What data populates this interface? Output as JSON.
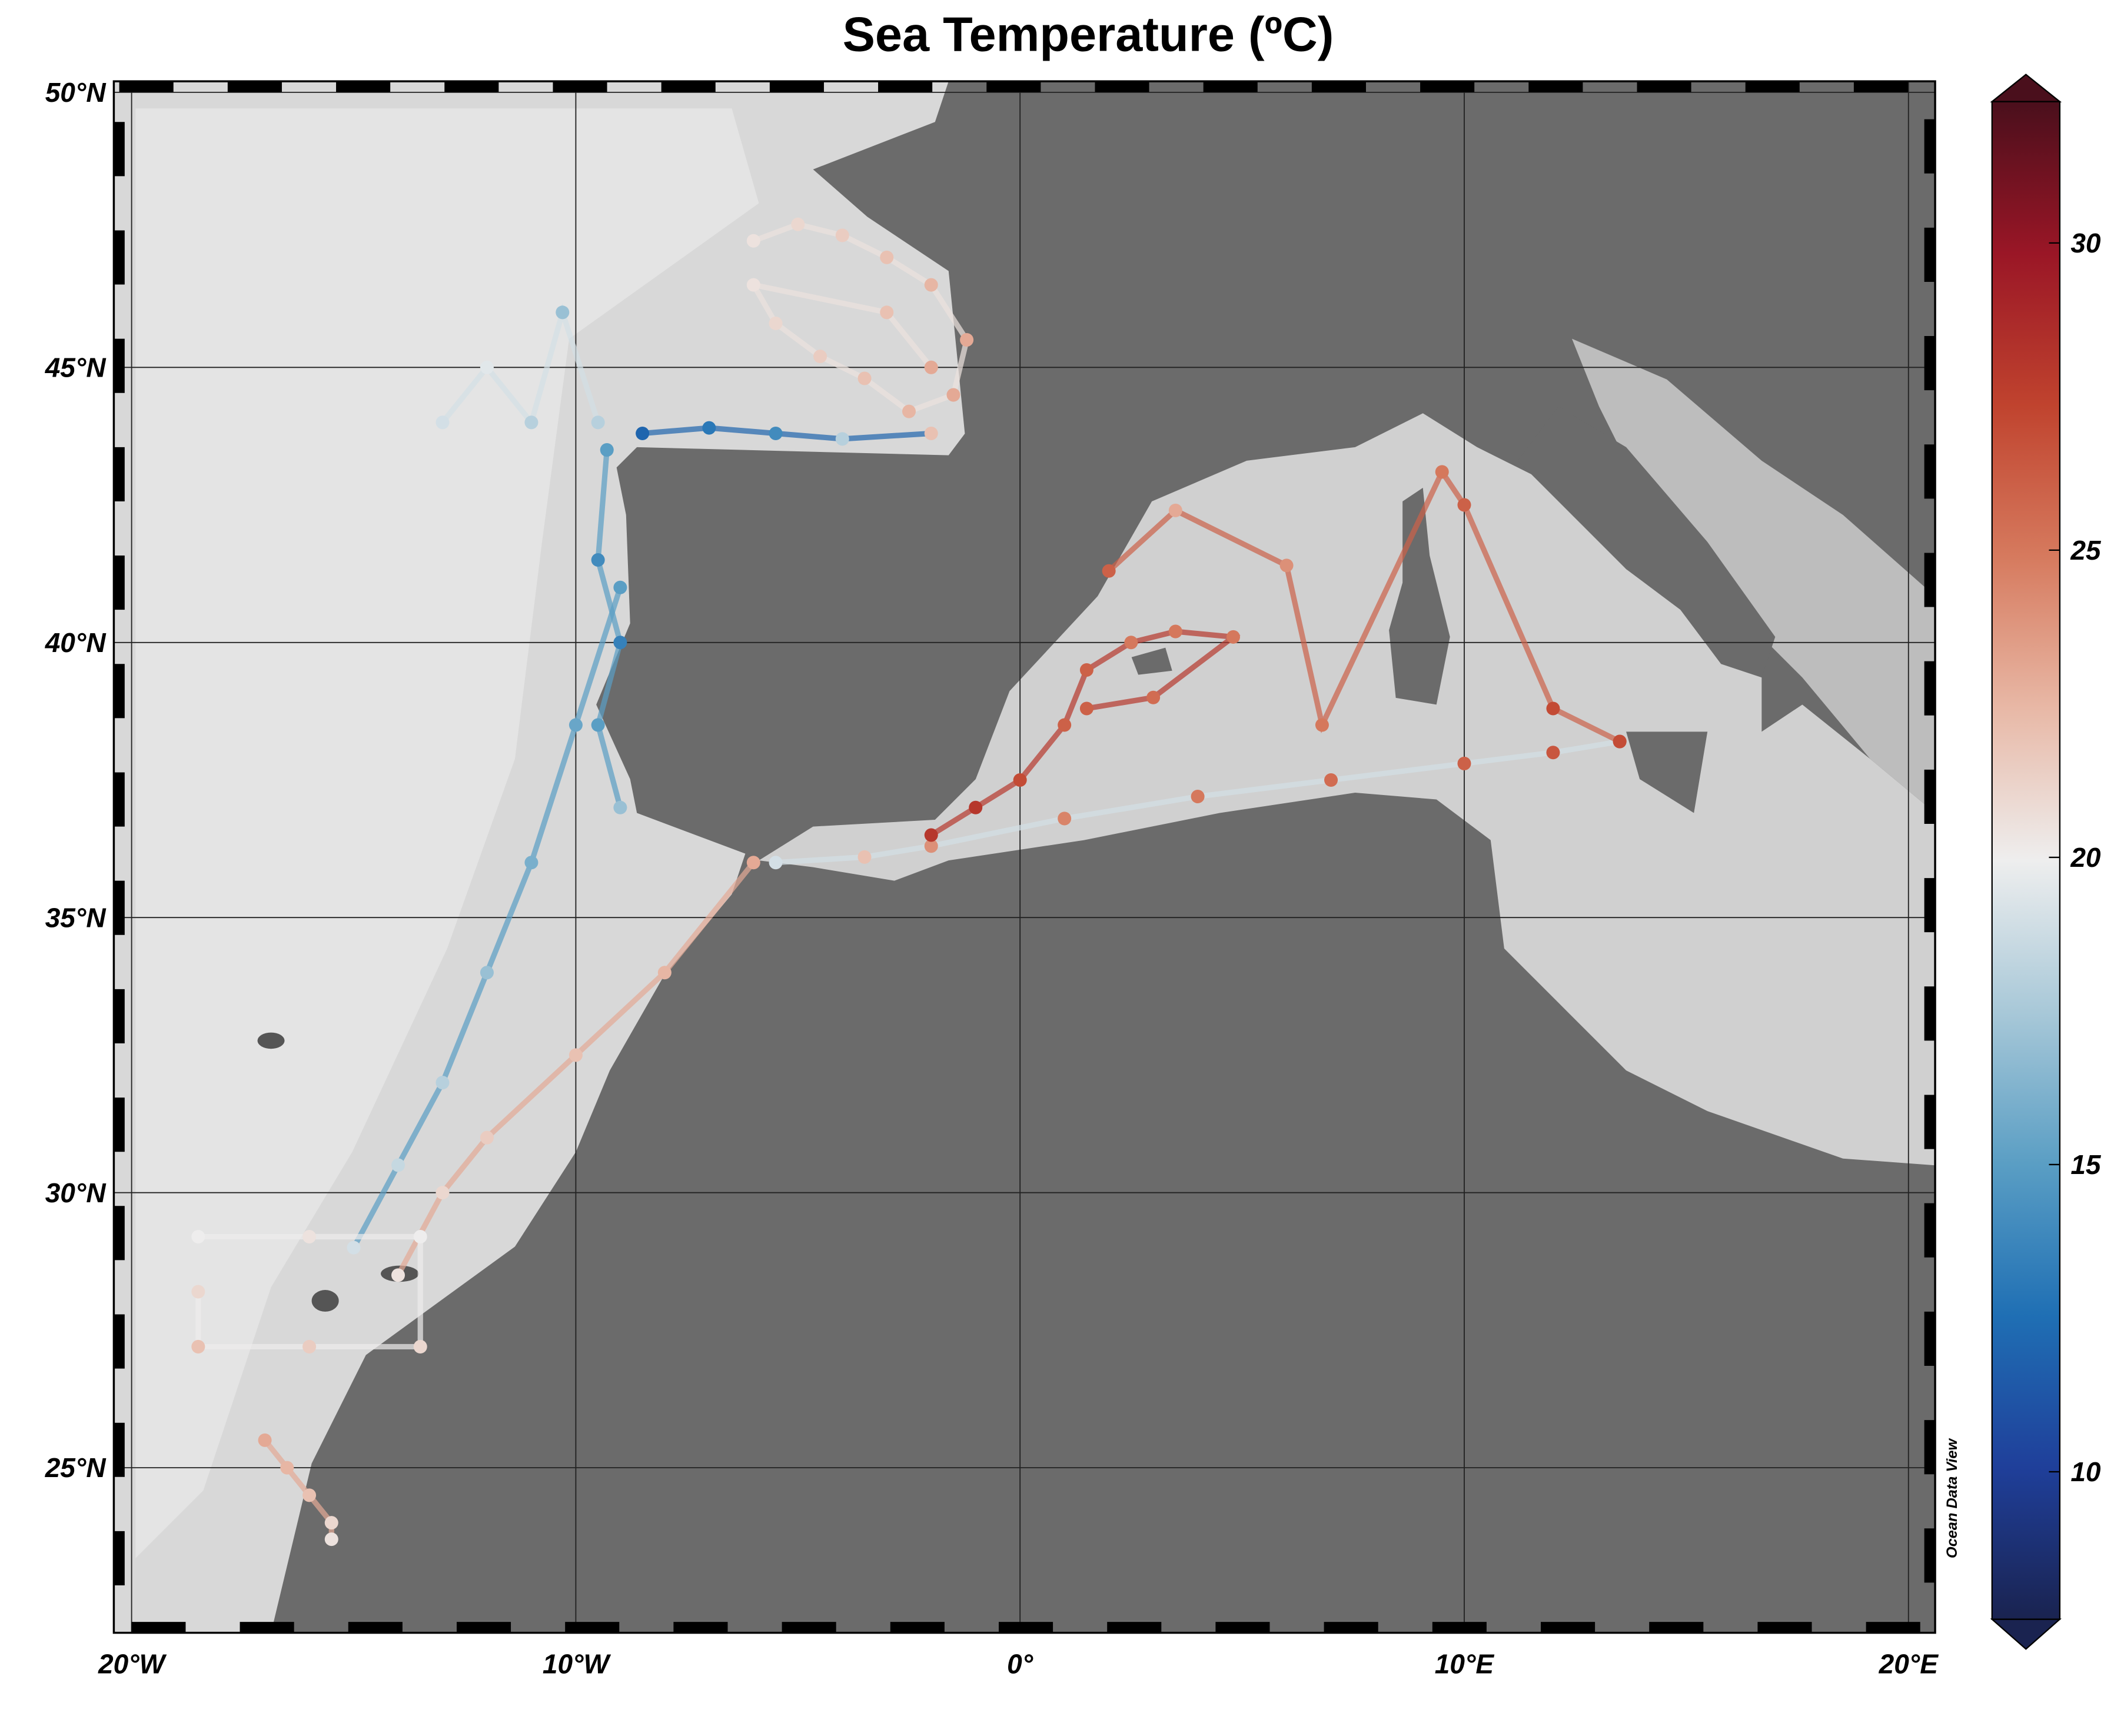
{
  "chart_data": {
    "type": "scatter",
    "title": "Sea Temperature (ºC)",
    "watermark": "Ocean Data View",
    "xlim": [
      -20.4,
      20.6
    ],
    "ylim": [
      22,
      50.2
    ],
    "xticks": [
      {
        "value": -20,
        "label": "20°W"
      },
      {
        "value": -10,
        "label": "10°W"
      },
      {
        "value": 0,
        "label": "0°"
      },
      {
        "value": 10,
        "label": "10°E"
      },
      {
        "value": 20,
        "label": "20°E"
      }
    ],
    "yticks": [
      {
        "value": 50,
        "label": "50°N"
      },
      {
        "value": 45,
        "label": "45°N"
      },
      {
        "value": 40,
        "label": "40°N"
      },
      {
        "value": 35,
        "label": "35°N"
      },
      {
        "value": 30,
        "label": "30°N"
      },
      {
        "value": 25,
        "label": "25°N"
      }
    ],
    "grid": true,
    "colorbar": {
      "lim": [
        7.6,
        32.3
      ],
      "ticks": [
        10,
        15,
        20,
        25,
        30
      ],
      "colormap": [
        "#1a2350",
        "#1f3f9a",
        "#1f6fb4",
        "#5a9ec4",
        "#a8c8d8",
        "#eeeeee",
        "#e8b8a6",
        "#d67a5e",
        "#c0432e",
        "#9a1626",
        "#4a0f1c"
      ]
    },
    "tracks": [
      {
        "x": [
          -9.3,
          -9.5,
          -9.0,
          -9.5,
          -9.0
        ],
        "y": [
          43.5,
          41.5,
          40.0,
          38.5,
          37.0
        ],
        "values": [
          15,
          14,
          13.5,
          15,
          17
        ]
      },
      {
        "x": [
          -8.5,
          -7.0,
          -5.5,
          -4.0,
          -2.0
        ],
        "y": [
          43.8,
          43.9,
          43.8,
          43.7,
          43.8
        ],
        "values": [
          12,
          13,
          14,
          18,
          22
        ]
      },
      {
        "x": [
          -6.0,
          -5.0,
          -4.0,
          -3.0,
          -2.0,
          -1.2,
          -1.5,
          -2.5,
          -3.5,
          -4.5,
          -5.5,
          -6.0,
          -3.0,
          -2.0
        ],
        "y": [
          47.3,
          47.6,
          47.4,
          47.0,
          46.5,
          45.5,
          44.5,
          44.2,
          44.8,
          45.2,
          45.8,
          46.5,
          46.0,
          45.0
        ],
        "values": [
          20.5,
          21,
          21.5,
          22,
          22.5,
          23,
          23,
          22.5,
          22,
          21.5,
          21,
          20.5,
          22,
          23
        ]
      },
      {
        "x": [
          -9.0,
          -10.0,
          -11.0,
          -12.0,
          -13.0,
          -14.0,
          -15.0
        ],
        "y": [
          41.0,
          38.5,
          36.0,
          34.0,
          32.0,
          30.5,
          29.0
        ],
        "values": [
          15,
          15.5,
          16,
          17,
          18,
          18.5,
          19
        ]
      },
      {
        "x": [
          -6.0,
          -8.0,
          -10.0,
          -12.0,
          -13.0,
          -14.0
        ],
        "y": [
          36.0,
          34.0,
          32.5,
          31.0,
          30.0,
          28.5
        ],
        "values": [
          23,
          22.5,
          22,
          21.5,
          21,
          20.5
        ]
      },
      {
        "x": [
          -18.5,
          -16.0,
          -13.5,
          -13.5,
          -16.0,
          -18.5,
          -18.5
        ],
        "y": [
          29.2,
          29.2,
          29.2,
          27.2,
          27.2,
          27.2,
          28.2
        ],
        "values": [
          20,
          20.5,
          20,
          21,
          21.5,
          22,
          21
        ]
      },
      {
        "x": [
          -17.0,
          -16.5,
          -16.0,
          -15.5,
          -15.5
        ],
        "y": [
          25.5,
          25.0,
          24.5,
          24.0,
          23.7
        ],
        "values": [
          23,
          22.5,
          22,
          21,
          20.5
        ]
      },
      {
        "x": [
          -5.5,
          -3.5,
          -2.0,
          1.0,
          4.0,
          7.0,
          10.0,
          12.0,
          13.5
        ],
        "y": [
          36.0,
          36.1,
          36.3,
          36.8,
          37.2,
          37.5,
          37.8,
          38.0,
          38.2
        ],
        "values": [
          19,
          22,
          24,
          24.5,
          25,
          25.5,
          26,
          26.5,
          27
        ]
      },
      {
        "x": [
          -2.0,
          -1.0,
          0.0,
          1.0,
          1.5,
          2.5,
          3.5,
          4.8,
          3.0,
          1.5
        ],
        "y": [
          36.5,
          37.0,
          37.5,
          38.5,
          39.5,
          40.0,
          40.2,
          40.1,
          39.0,
          38.8
        ],
        "values": [
          28,
          28,
          27,
          26,
          26,
          25,
          25,
          25,
          25.5,
          26
        ]
      },
      {
        "x": [
          2.0,
          3.5,
          6.0,
          6.8,
          9.5,
          10.0,
          12.0,
          13.5
        ],
        "y": [
          41.3,
          42.4,
          41.4,
          38.5,
          43.1,
          42.5,
          38.8,
          38.2
        ],
        "values": [
          26,
          23,
          24,
          25,
          25,
          26,
          27,
          27
        ]
      },
      {
        "x": [
          -13.0,
          -12.0,
          -11.0,
          -10.3,
          -9.5
        ],
        "y": [
          44.0,
          45.0,
          44.0,
          46.0,
          44.0
        ],
        "values": [
          19,
          19.5,
          18,
          17,
          18
        ]
      }
    ]
  }
}
